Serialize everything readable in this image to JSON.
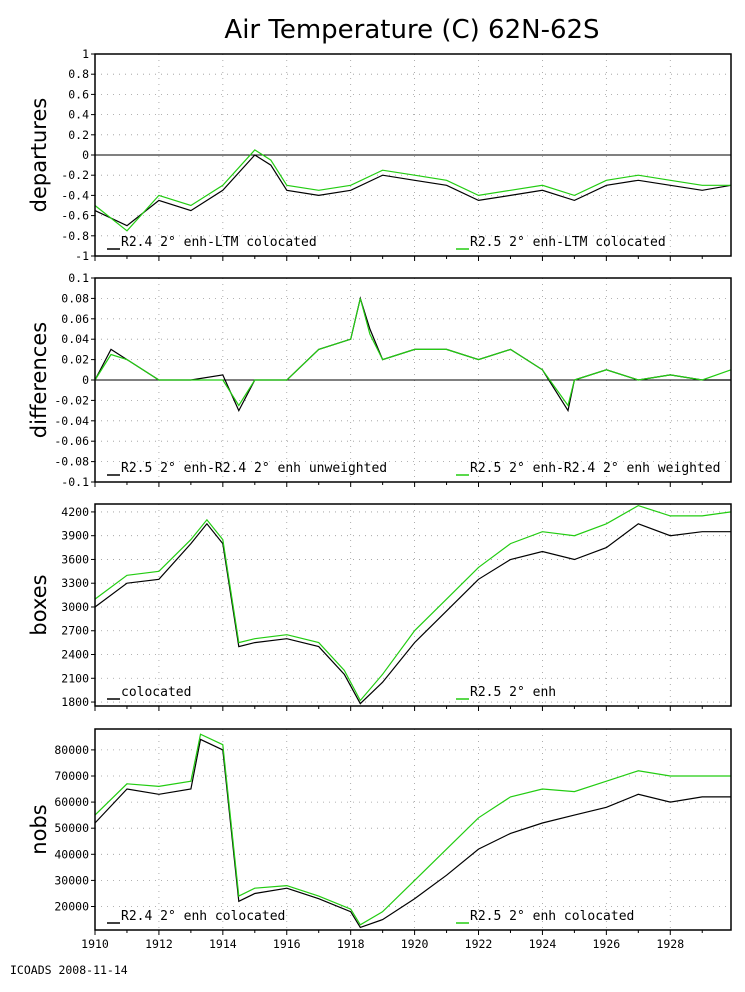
{
  "title": "Air Temperature (C) 62N-62S",
  "footer": "ICOADS 2008-11-14",
  "colors": {
    "series_a": "#000000",
    "series_b": "#22cc11",
    "grid": "#999999"
  },
  "chart_data": [
    {
      "type": "line",
      "ylabel": "departures",
      "xlim": [
        1910,
        1929.9
      ],
      "ylim": [
        -1,
        1
      ],
      "yticks": [
        -1,
        -0.8,
        -0.6,
        -0.4,
        -0.2,
        0,
        0.2,
        0.4,
        0.6,
        0.8,
        1
      ],
      "ytick_labels": [
        "-1",
        "-0.8",
        "-0.6",
        "-0.4",
        "-0.2",
        "0",
        "0.2",
        "0.4",
        "0.6",
        "0.8",
        "1"
      ],
      "zero_line": true,
      "series": [
        {
          "name": "R2.4 2° enh-LTM colocated",
          "x": [
            1910,
            1911,
            1912,
            1913,
            1914,
            1915,
            1915.5,
            1916,
            1917,
            1918,
            1919,
            1920,
            1921,
            1922,
            1923,
            1924,
            1925,
            1926,
            1927,
            1928,
            1929,
            1929.9
          ],
          "values": [
            -0.55,
            -0.7,
            -0.45,
            -0.55,
            -0.35,
            0.0,
            -0.1,
            -0.35,
            -0.4,
            -0.35,
            -0.2,
            -0.25,
            -0.3,
            -0.45,
            -0.4,
            -0.35,
            -0.45,
            -0.3,
            -0.25,
            -0.3,
            -0.35,
            -0.3
          ]
        },
        {
          "name": "R2.5 2° enh-LTM colocated",
          "x": [
            1910,
            1911,
            1912,
            1913,
            1914,
            1915,
            1915.5,
            1916,
            1917,
            1918,
            1919,
            1920,
            1921,
            1922,
            1923,
            1924,
            1925,
            1926,
            1927,
            1928,
            1929,
            1929.9
          ],
          "values": [
            -0.5,
            -0.75,
            -0.4,
            -0.5,
            -0.3,
            0.05,
            -0.05,
            -0.3,
            -0.35,
            -0.3,
            -0.15,
            -0.2,
            -0.25,
            -0.4,
            -0.35,
            -0.3,
            -0.4,
            -0.25,
            -0.2,
            -0.25,
            -0.3,
            -0.3
          ]
        }
      ]
    },
    {
      "type": "line",
      "ylabel": "differences",
      "xlim": [
        1910,
        1929.9
      ],
      "ylim": [
        -0.1,
        0.1
      ],
      "yticks": [
        -0.1,
        -0.08,
        -0.06,
        -0.04,
        -0.02,
        0,
        0.02,
        0.04,
        0.06,
        0.08,
        0.1
      ],
      "ytick_labels": [
        "-0.1",
        "-0.08",
        "-0.06",
        "-0.04",
        "-0.02",
        "0",
        "0.02",
        "0.04",
        "0.06",
        "0.08",
        "0.1"
      ],
      "zero_line": true,
      "series": [
        {
          "name": "R2.5 2° enh-R2.4 2° enh unweighted",
          "x": [
            1910,
            1910.5,
            1911,
            1912,
            1913,
            1914,
            1914.5,
            1915,
            1916,
            1917,
            1918,
            1918.3,
            1918.6,
            1919,
            1920,
            1921,
            1922,
            1923,
            1924,
            1924.8,
            1925,
            1926,
            1927,
            1928,
            1929,
            1929.9
          ],
          "values": [
            0.0,
            0.03,
            0.02,
            0.0,
            0.0,
            0.005,
            -0.03,
            0.0,
            0.0,
            0.03,
            0.04,
            0.08,
            0.05,
            0.02,
            0.03,
            0.03,
            0.02,
            0.03,
            0.01,
            -0.03,
            0.0,
            0.01,
            0.0,
            0.005,
            0.0,
            0.0
          ]
        },
        {
          "name": "R2.5 2° enh-R2.4 2° enh weighted",
          "x": [
            1910,
            1910.5,
            1911,
            1912,
            1913,
            1914,
            1914.5,
            1915,
            1916,
            1917,
            1918,
            1918.3,
            1918.6,
            1919,
            1920,
            1921,
            1922,
            1923,
            1924,
            1924.8,
            1925,
            1926,
            1927,
            1928,
            1929,
            1929.9
          ],
          "values": [
            0.0,
            0.025,
            0.02,
            0.0,
            0.0,
            0.0,
            -0.025,
            0.0,
            0.0,
            0.03,
            0.04,
            0.08,
            0.045,
            0.02,
            0.03,
            0.03,
            0.02,
            0.03,
            0.01,
            -0.025,
            0.0,
            0.01,
            0.0,
            0.005,
            0.0,
            0.01
          ]
        }
      ]
    },
    {
      "type": "line",
      "ylabel": "boxes",
      "xlim": [
        1910,
        1929.9
      ],
      "ylim": [
        1750,
        4300
      ],
      "yticks": [
        1800,
        2100,
        2400,
        2700,
        3000,
        3300,
        3600,
        3900,
        4200
      ],
      "ytick_labels": [
        "1800",
        "2100",
        "2400",
        "2700",
        "3000",
        "3300",
        "3600",
        "3900",
        "4200"
      ],
      "series": [
        {
          "name": "colocated",
          "x": [
            1910,
            1911,
            1912,
            1913,
            1913.5,
            1914,
            1914.5,
            1915,
            1916,
            1917,
            1917.8,
            1918.3,
            1919,
            1920,
            1921,
            1922,
            1923,
            1924,
            1925,
            1926,
            1927,
            1928,
            1929,
            1929.9
          ],
          "values": [
            3000,
            3300,
            3350,
            3800,
            4050,
            3800,
            2500,
            2550,
            2600,
            2500,
            2150,
            1780,
            2050,
            2550,
            2950,
            3350,
            3600,
            3700,
            3600,
            3750,
            4050,
            3900,
            3950,
            3950
          ]
        },
        {
          "name": "R2.5 2° enh",
          "x": [
            1910,
            1911,
            1912,
            1913,
            1913.5,
            1914,
            1914.5,
            1915,
            1916,
            1917,
            1917.8,
            1918.3,
            1919,
            1920,
            1921,
            1922,
            1923,
            1924,
            1925,
            1926,
            1927,
            1928,
            1929,
            1929.9
          ],
          "values": [
            3100,
            3400,
            3450,
            3850,
            4100,
            3850,
            2550,
            2600,
            2650,
            2550,
            2200,
            1820,
            2150,
            2700,
            3100,
            3500,
            3800,
            3950,
            3900,
            4050,
            4280,
            4150,
            4150,
            4200
          ]
        }
      ]
    },
    {
      "type": "line",
      "ylabel": "nobs",
      "xlim": [
        1910,
        1929.9
      ],
      "ylim": [
        11000,
        88000
      ],
      "yticks": [
        20000,
        30000,
        40000,
        50000,
        60000,
        70000,
        80000
      ],
      "ytick_labels": [
        "20000",
        "30000",
        "40000",
        "50000",
        "60000",
        "70000",
        "80000"
      ],
      "xticks": [
        1910,
        1912,
        1914,
        1916,
        1918,
        1920,
        1922,
        1924,
        1926,
        1928
      ],
      "xtick_labels": [
        "1910",
        "1912",
        "1914",
        "1916",
        "1918",
        "1920",
        "1922",
        "1924",
        "1926",
        "1928"
      ],
      "series": [
        {
          "name": "R2.4 2° enh colocated",
          "x": [
            1910,
            1911,
            1912,
            1913,
            1913.3,
            1914,
            1914.5,
            1915,
            1916,
            1917,
            1918,
            1918.3,
            1919,
            1920,
            1921,
            1922,
            1923,
            1924,
            1925,
            1926,
            1927,
            1928,
            1929,
            1929.9
          ],
          "values": [
            52000,
            65000,
            63000,
            65000,
            84000,
            80000,
            22000,
            25000,
            27000,
            23000,
            18000,
            12000,
            15000,
            23000,
            32000,
            42000,
            48000,
            52000,
            55000,
            58000,
            63000,
            60000,
            62000,
            62000
          ]
        },
        {
          "name": "R2.5 2° enh colocated",
          "x": [
            1910,
            1911,
            1912,
            1913,
            1913.3,
            1914,
            1914.5,
            1915,
            1916,
            1917,
            1918,
            1918.3,
            1919,
            1920,
            1921,
            1922,
            1923,
            1924,
            1925,
            1926,
            1927,
            1928,
            1929,
            1929.9
          ],
          "values": [
            55000,
            67000,
            66000,
            68000,
            86000,
            82000,
            24000,
            27000,
            28000,
            24000,
            19000,
            13000,
            18000,
            30000,
            42000,
            54000,
            62000,
            65000,
            64000,
            68000,
            72000,
            70000,
            70000,
            70000
          ]
        }
      ]
    }
  ]
}
